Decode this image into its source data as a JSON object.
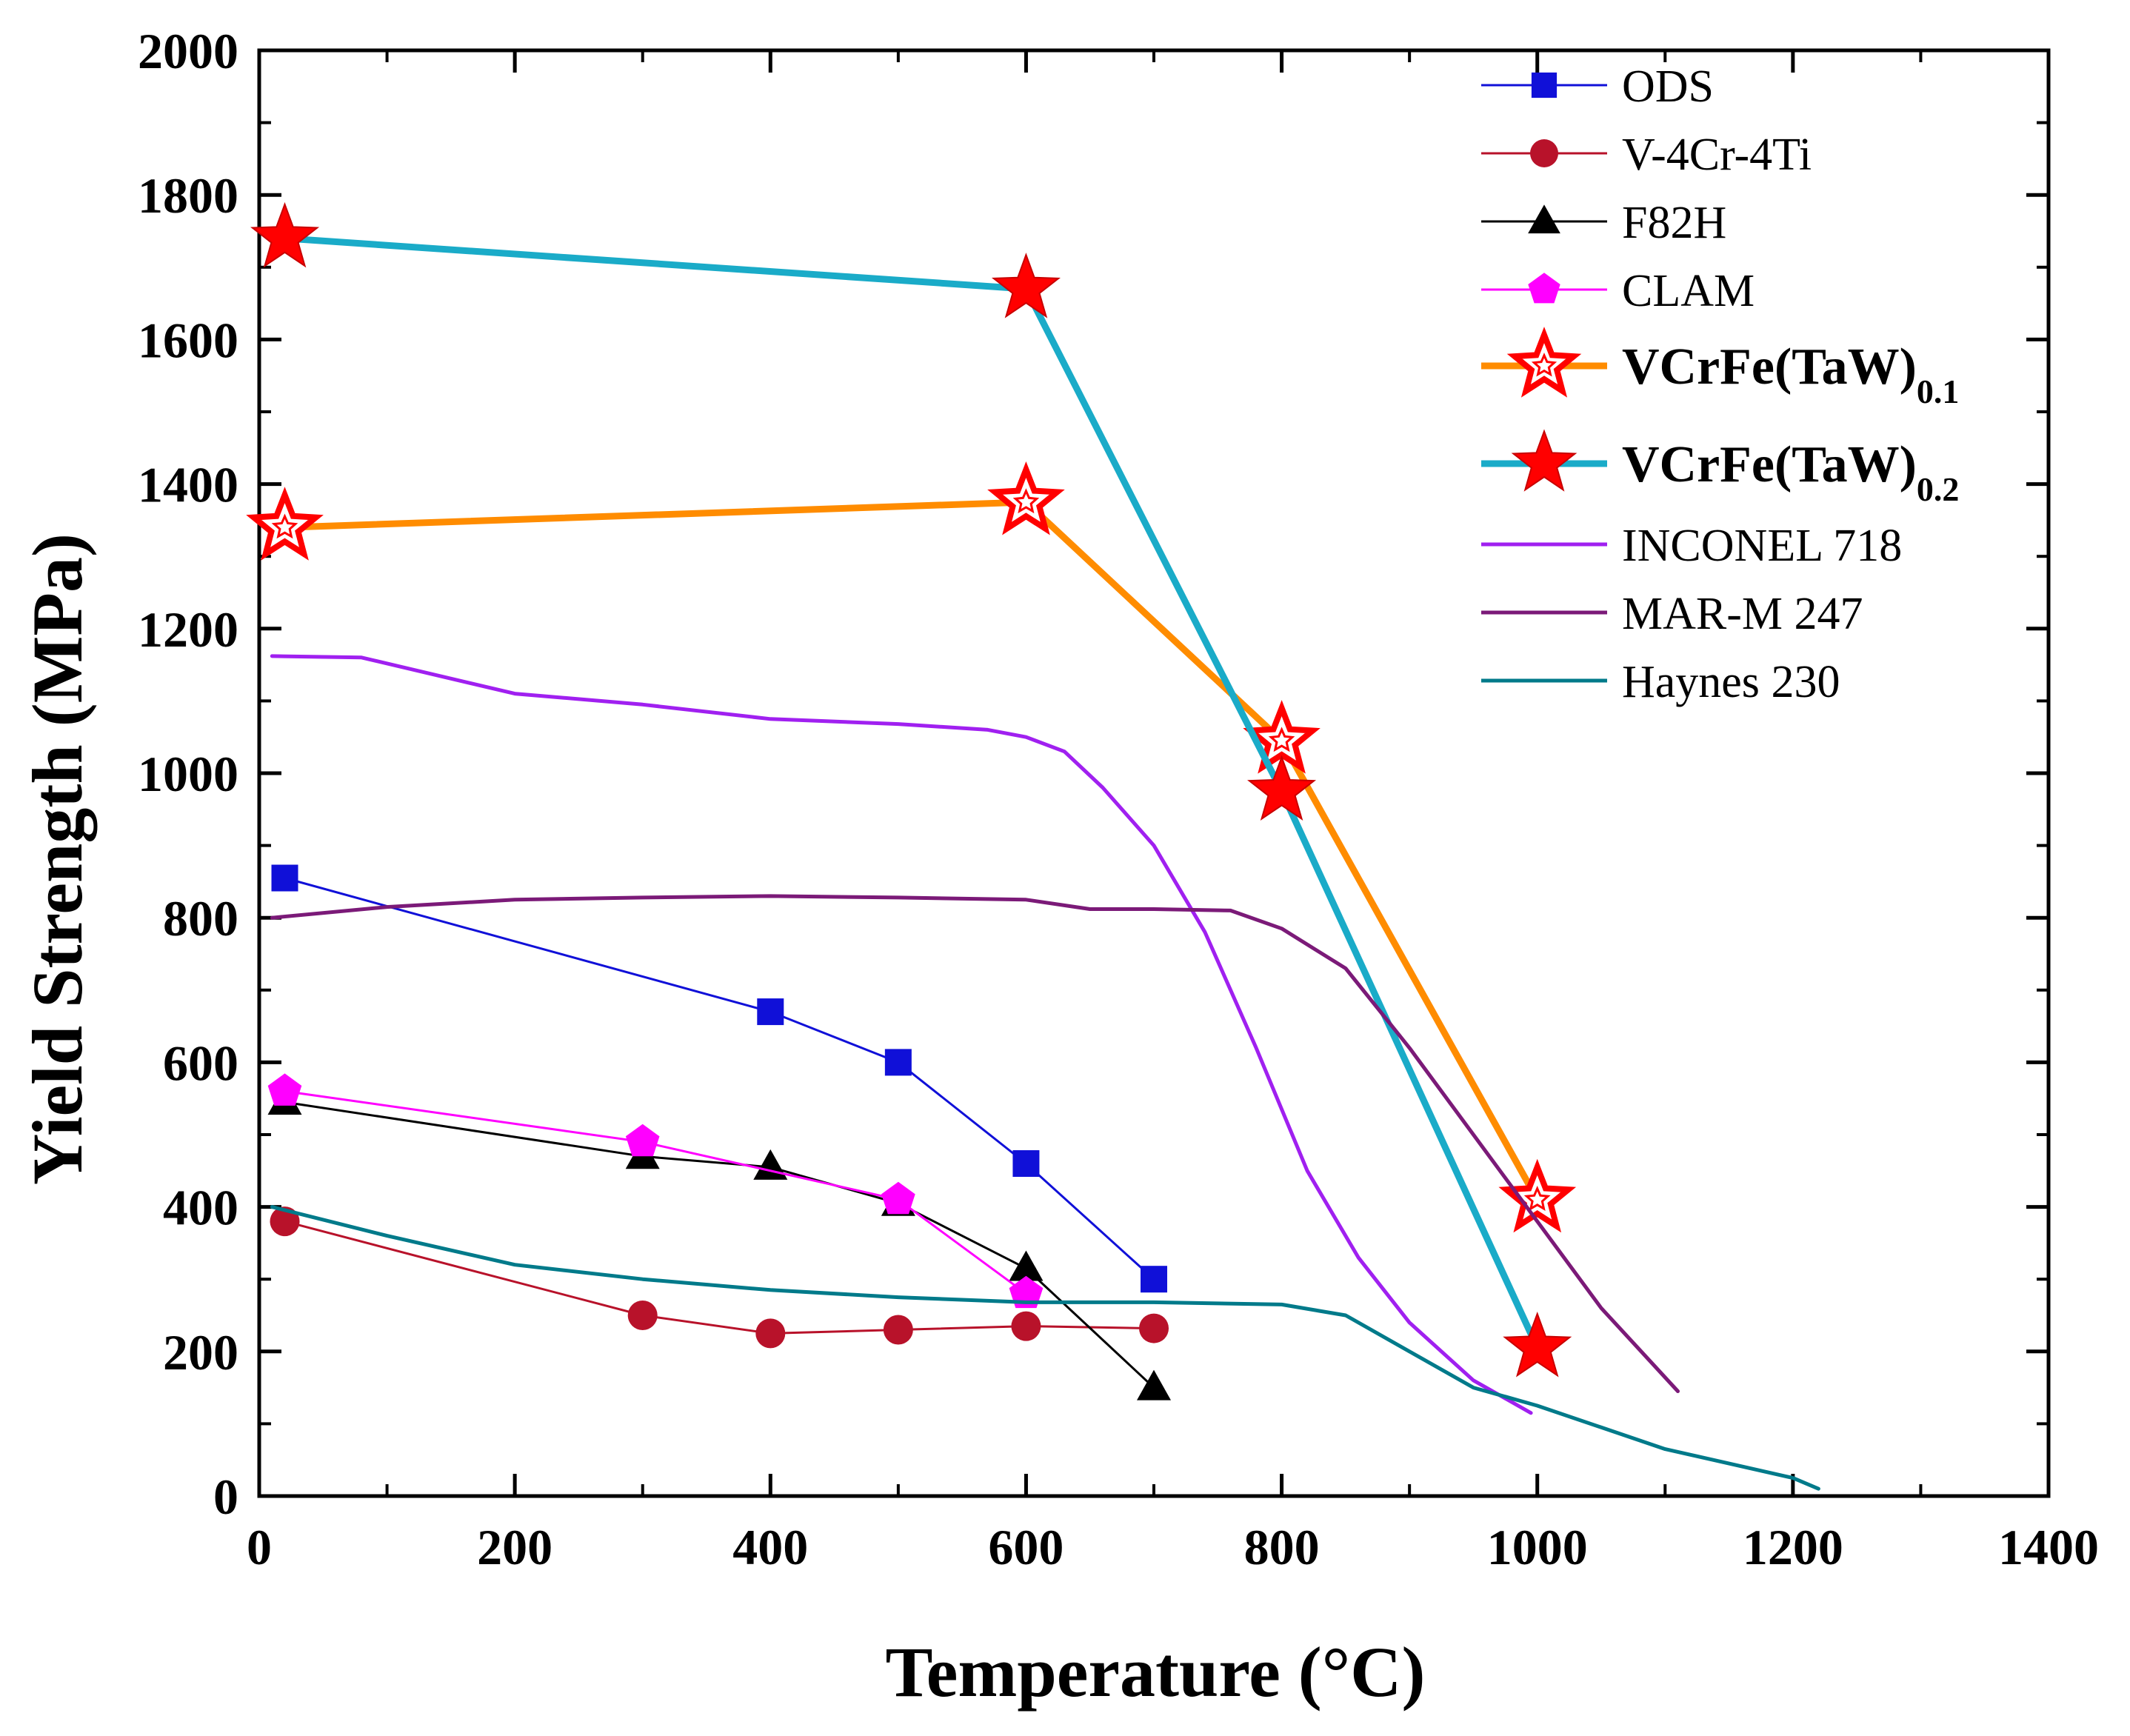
{
  "chart_data": {
    "type": "line",
    "title": "",
    "xlabel": "Temperature (°C)",
    "ylabel": "Yield Strength (MPa)",
    "xlim": [
      0,
      1400
    ],
    "ylim": [
      0,
      2000
    ],
    "x_ticks": [
      "0",
      "200",
      "400",
      "600",
      "800",
      "1000",
      "1200",
      "1400"
    ],
    "y_ticks": [
      "0",
      "200",
      "400",
      "600",
      "800",
      "1000",
      "1200",
      "1400",
      "1600",
      "1800",
      "2000"
    ],
    "legend_position": "top-right",
    "series": [
      {
        "name": "ODS",
        "color": "#1010d8",
        "marker": "square",
        "line": "thin",
        "x": [
          20,
          400,
          500,
          600,
          700
        ],
        "y": [
          855,
          670,
          600,
          460,
          300
        ]
      },
      {
        "name": "V-4Cr-4Ti",
        "color": "#b8122a",
        "marker": "circle",
        "line": "thin",
        "x": [
          20,
          300,
          400,
          500,
          600,
          700
        ],
        "y": [
          380,
          250,
          225,
          230,
          235,
          232
        ]
      },
      {
        "name": "F82H",
        "color": "#000000",
        "marker": "triangle",
        "line": "thin",
        "x": [
          20,
          300,
          400,
          500,
          600,
          700
        ],
        "y": [
          545,
          470,
          455,
          405,
          315,
          150
        ]
      },
      {
        "name": "CLAM",
        "color": "#ff00ff",
        "marker": "pentagon",
        "line": "thin",
        "x": [
          20,
          300,
          500,
          600
        ],
        "y": [
          560,
          490,
          410,
          280
        ]
      },
      {
        "name": "VCrFe(TaW)",
        "subscript": "0.1",
        "color": "#ff8c00",
        "marker": "open-star",
        "line": "thick",
        "x": [
          20,
          600,
          800,
          1000
        ],
        "y": [
          1340,
          1375,
          1045,
          410
        ]
      },
      {
        "name": "VCrFe(TaW)",
        "subscript": "0.2",
        "color": "#1aabc8",
        "marker": "filled-star",
        "line": "thick",
        "x": [
          20,
          600,
          800,
          1000
        ],
        "y": [
          1740,
          1670,
          975,
          205
        ]
      },
      {
        "name": "INCONEL 718",
        "color": "#a020f0",
        "marker": "none",
        "line": "medium",
        "x": [
          10,
          80,
          200,
          300,
          400,
          500,
          570,
          600,
          630,
          660,
          700,
          740,
          780,
          820,
          860,
          900,
          950,
          995
        ],
        "y": [
          1162,
          1160,
          1110,
          1095,
          1075,
          1068,
          1060,
          1050,
          1030,
          980,
          900,
          780,
          620,
          450,
          330,
          240,
          160,
          115
        ]
      },
      {
        "name": "MAR-M 247",
        "color": "#7b1a78",
        "marker": "none",
        "line": "medium",
        "x": [
          10,
          100,
          200,
          300,
          400,
          500,
          600,
          650,
          700,
          760,
          800,
          850,
          900,
          950,
          1000,
          1050,
          1110
        ],
        "y": [
          800,
          815,
          825,
          828,
          830,
          828,
          825,
          812,
          812,
          810,
          785,
          730,
          620,
          500,
          380,
          260,
          145
        ]
      },
      {
        "name": "Haynes 230",
        "color": "#007a8a",
        "marker": "none",
        "line": "medium",
        "x": [
          10,
          100,
          200,
          300,
          400,
          500,
          600,
          700,
          800,
          850,
          900,
          950,
          1000,
          1050,
          1100,
          1150,
          1200,
          1220
        ],
        "y": [
          400,
          360,
          320,
          300,
          285,
          275,
          268,
          268,
          265,
          250,
          200,
          150,
          125,
          95,
          65,
          45,
          25,
          10
        ]
      }
    ]
  }
}
